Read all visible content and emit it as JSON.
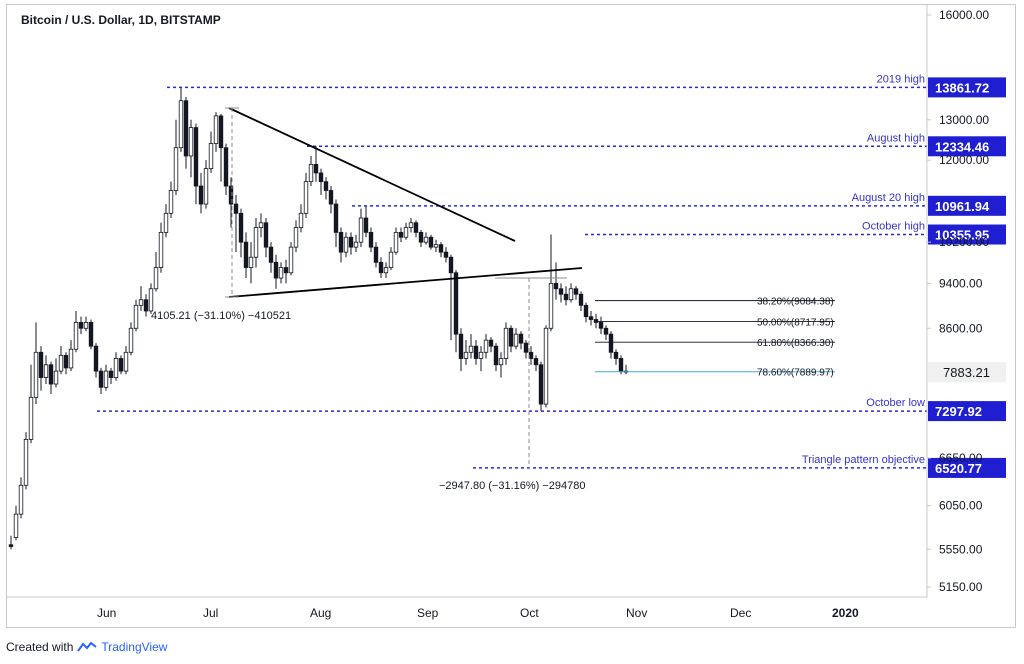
{
  "header": {
    "title": "Bitcoin / U.S. Dollar, 1D, BITSTAMP"
  },
  "footer": {
    "created_with": "Created with",
    "brand": "TradingView"
  },
  "colors": {
    "level": "#2727d6",
    "level_box": "#1f1fd1",
    "candle": "#131722",
    "fib": "#131722",
    "fib_786": "#4ba8d8",
    "trend": "#000000",
    "measure": "#8c8c8c"
  },
  "chart_data": {
    "type": "candlestick",
    "title": "Bitcoin / U.S. Dollar, 1D, BITSTAMP",
    "y_scale": "log",
    "y_ticks": [
      "16000.00",
      "13000.00",
      "12000.00",
      "10200.00",
      "9400.00",
      "8600.00",
      "6650.00",
      "6050.00",
      "5550.00",
      "5150.00"
    ],
    "x_ticks": [
      "Jun",
      "Jul",
      "Aug",
      "Sep",
      "Oct",
      "Nov",
      "Dec",
      "2020"
    ],
    "levels": [
      {
        "label": "2019 high",
        "price": "13861.72",
        "value": 13861.72
      },
      {
        "label": "August high",
        "price": "12334.46",
        "value": 12334.46
      },
      {
        "label": "August 20 high",
        "price": "10961.94",
        "value": 10961.94
      },
      {
        "label": "October high",
        "price": "10355.95",
        "value": 10355.95
      },
      {
        "label": "October low",
        "price": "7297.92",
        "value": 7297.92
      },
      {
        "label": "Triangle pattern objective",
        "price": "6520.77",
        "value": 6520.77
      }
    ],
    "fib_levels": [
      {
        "label": "38.20%(9084.38)",
        "value": 9084.38
      },
      {
        "label": "50.00%(8717.95)",
        "value": 8717.95
      },
      {
        "label": "61.80%(8366.30)",
        "value": 8366.3
      },
      {
        "label": "78.60%(7889.97)",
        "value": 7889.97
      }
    ],
    "last_price": "7883.21",
    "measurements": [
      {
        "label": "4105.21 (−31.10%) −410521"
      },
      {
        "label": "−2947.80 (−31.16%) −294780"
      }
    ],
    "series": [
      {
        "values": [
          [
            5600,
            5580,
            5700,
            5550
          ],
          [
            5680,
            5950,
            6050,
            5650
          ],
          [
            5950,
            6300,
            6400,
            5900
          ],
          [
            6300,
            6900,
            7000,
            6250
          ],
          [
            6900,
            7500,
            8000,
            6850
          ],
          [
            7500,
            8200,
            8700,
            7400
          ],
          [
            8200,
            7800,
            8300,
            7600
          ],
          [
            7800,
            8000,
            8150,
            7700
          ],
          [
            8000,
            7700,
            8050,
            7550
          ],
          [
            7700,
            7900,
            8100,
            7650
          ],
          [
            7900,
            8150,
            8300,
            7850
          ],
          [
            8150,
            7950,
            8200,
            7850
          ],
          [
            7950,
            8250,
            8400,
            7900
          ],
          [
            8250,
            8700,
            8900,
            8200
          ],
          [
            8700,
            8600,
            8800,
            8500
          ],
          [
            8600,
            8700,
            8800,
            8550
          ],
          [
            8700,
            8300,
            8750,
            8250
          ],
          [
            8300,
            7900,
            8350,
            7800
          ],
          [
            7900,
            7650,
            7950,
            7550
          ],
          [
            7650,
            7900,
            8000,
            7600
          ],
          [
            7900,
            7800,
            7950,
            7700
          ],
          [
            7800,
            8100,
            8200,
            7750
          ],
          [
            8100,
            7900,
            8150,
            7850
          ],
          [
            7900,
            8200,
            8300,
            7850
          ],
          [
            8200,
            8600,
            8700,
            8150
          ],
          [
            8600,
            9000,
            9100,
            8550
          ],
          [
            9000,
            9100,
            9350,
            8900
          ],
          [
            9100,
            8900,
            9200,
            8800
          ],
          [
            8900,
            9300,
            9400,
            8850
          ],
          [
            9300,
            9700,
            10000,
            9250
          ],
          [
            9700,
            10400,
            10600,
            9600
          ],
          [
            10400,
            10800,
            11000,
            10300
          ],
          [
            10800,
            11300,
            11500,
            10700
          ],
          [
            11300,
            12300,
            13000,
            11200
          ],
          [
            12300,
            13500,
            13850,
            12200
          ],
          [
            13500,
            12100,
            13600,
            11800
          ],
          [
            12100,
            12800,
            13000,
            11600
          ],
          [
            12800,
            11400,
            12900,
            11000
          ],
          [
            11400,
            11000,
            11700,
            10800
          ],
          [
            11000,
            11800,
            12000,
            10900
          ],
          [
            11800,
            12400,
            12700,
            11700
          ],
          [
            12400,
            13100,
            13200,
            12200
          ],
          [
            13100,
            12300,
            13150,
            11500
          ],
          [
            12300,
            11400,
            12400,
            11200
          ],
          [
            11400,
            11000,
            11600,
            10500
          ],
          [
            11000,
            10800,
            11200,
            10000
          ],
          [
            10800,
            10200,
            10900,
            9900
          ],
          [
            10200,
            9700,
            10400,
            9500
          ],
          [
            9700,
            9900,
            10200,
            9400
          ],
          [
            9900,
            10500,
            10700,
            9700
          ],
          [
            10500,
            10600,
            10800,
            10300
          ],
          [
            10600,
            10100,
            10700,
            9900
          ],
          [
            10100,
            9800,
            10200,
            9600
          ],
          [
            9800,
            9500,
            9950,
            9300
          ],
          [
            9500,
            9700,
            9800,
            9400
          ],
          [
            9700,
            9600,
            9850,
            9400
          ],
          [
            9600,
            10100,
            10200,
            9550
          ],
          [
            10100,
            10500,
            10650,
            10000
          ],
          [
            10500,
            10800,
            11000,
            10400
          ],
          [
            10800,
            11500,
            11700,
            10700
          ],
          [
            11500,
            11900,
            12100,
            11400
          ],
          [
            11900,
            11700,
            12334,
            11500
          ],
          [
            11700,
            11500,
            11800,
            11200
          ],
          [
            11500,
            11300,
            11600,
            11100
          ],
          [
            11300,
            11000,
            11400,
            10800
          ],
          [
            11000,
            10400,
            11100,
            10100
          ],
          [
            10400,
            10000,
            10500,
            9800
          ],
          [
            10000,
            10300,
            10400,
            9900
          ],
          [
            10300,
            10100,
            10400,
            9950
          ],
          [
            10100,
            10200,
            10350,
            10000
          ],
          [
            10200,
            10700,
            10900,
            10100
          ],
          [
            10700,
            10400,
            10961,
            10300
          ],
          [
            10400,
            10100,
            10500,
            10000
          ],
          [
            10100,
            9800,
            10200,
            9700
          ],
          [
            9800,
            9600,
            9900,
            9500
          ],
          [
            9600,
            9700,
            9800,
            9500
          ],
          [
            9700,
            10000,
            10100,
            9650
          ],
          [
            10000,
            10400,
            10500,
            9950
          ],
          [
            10400,
            10300,
            10500,
            10200
          ],
          [
            10300,
            10500,
            10600,
            10250
          ],
          [
            10500,
            10600,
            10700,
            10400
          ],
          [
            10600,
            10400,
            10650,
            10300
          ],
          [
            10400,
            10200,
            10450,
            10100
          ],
          [
            10200,
            10300,
            10400,
            10150
          ],
          [
            10300,
            10100,
            10350,
            10050
          ],
          [
            10100,
            10150,
            10250,
            10000
          ],
          [
            10150,
            10000,
            10200,
            9900
          ],
          [
            10000,
            9900,
            10100,
            9800
          ],
          [
            9900,
            9600,
            9950,
            8400
          ],
          [
            9600,
            8500,
            9650,
            8200
          ],
          [
            8500,
            8100,
            8600,
            7900
          ],
          [
            8100,
            8200,
            8400,
            8000
          ],
          [
            8200,
            8300,
            8500,
            8100
          ],
          [
            8300,
            8100,
            8400,
            8000
          ],
          [
            8100,
            8200,
            8300,
            7900
          ],
          [
            8200,
            8400,
            8500,
            8100
          ],
          [
            8400,
            8300,
            8450,
            8200
          ],
          [
            8300,
            8000,
            8350,
            7900
          ],
          [
            8000,
            8100,
            8200,
            7800
          ],
          [
            8100,
            8600,
            8700,
            8000
          ],
          [
            8600,
            8300,
            8650,
            8200
          ],
          [
            8300,
            8500,
            8600,
            8250
          ],
          [
            8500,
            8350,
            8550,
            8250
          ],
          [
            8350,
            8200,
            8400,
            8100
          ],
          [
            8200,
            8100,
            8300,
            8000
          ],
          [
            8100,
            8000,
            8150,
            7900
          ],
          [
            8000,
            7400,
            8050,
            7297
          ],
          [
            7400,
            8600,
            8650,
            7350
          ],
          [
            8600,
            9400,
            10355,
            8550
          ],
          [
            9400,
            9300,
            9800,
            9100
          ],
          [
            9300,
            9200,
            9400,
            9050
          ],
          [
            9200,
            9100,
            9350,
            9000
          ],
          [
            9100,
            9300,
            9400,
            9050
          ],
          [
            9300,
            9200,
            9350,
            9100
          ],
          [
            9200,
            9000,
            9250,
            8900
          ],
          [
            9000,
            8800,
            9050,
            8700
          ],
          [
            8800,
            8750,
            8900,
            8650
          ],
          [
            8750,
            8700,
            8850,
            8600
          ],
          [
            8700,
            8600,
            8800,
            8500
          ],
          [
            8600,
            8500,
            8650,
            8400
          ],
          [
            8500,
            8200,
            8550,
            8100
          ],
          [
            8200,
            8100,
            8250,
            8000
          ],
          [
            8100,
            7900,
            8150,
            7850
          ],
          [
            7900,
            7883,
            8000,
            7850
          ]
        ]
      }
    ]
  }
}
